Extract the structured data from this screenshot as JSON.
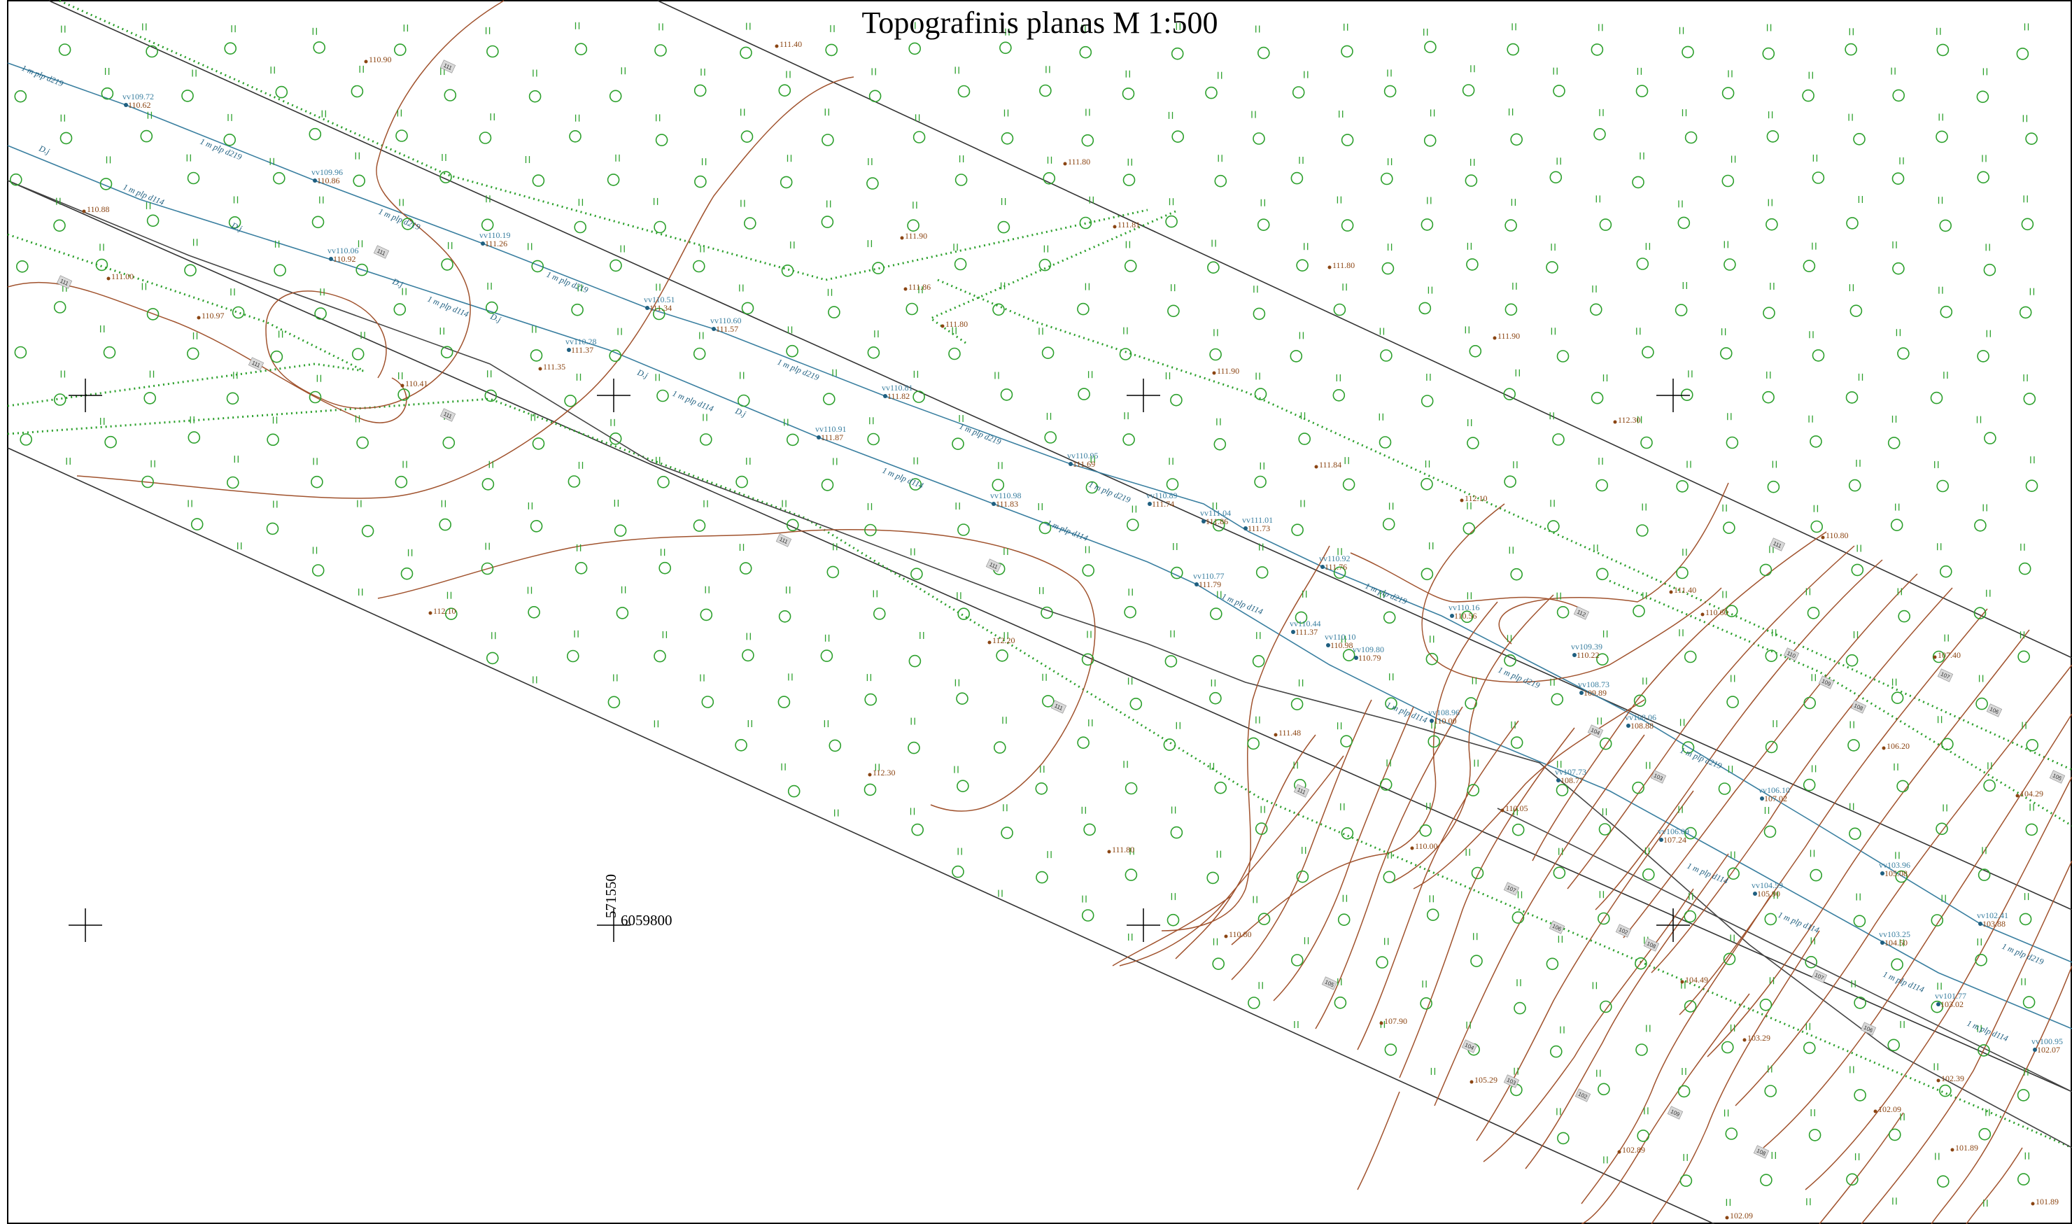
{
  "title": "Topografinis planas M 1:500",
  "grid_labels": {
    "easting": "571550",
    "northing": "6059800"
  },
  "colors": {
    "frame": "#000000",
    "road_edge": "#333333",
    "contour": "#a0522d",
    "elevation_text": "#8b4513",
    "water_pipe": "#3a7fa0",
    "gas_pipe": "#555555",
    "vegetation": "#2ca02c",
    "label_box": "#d9d9d9"
  },
  "legend_symbols": {
    "tree": "circle-symbol",
    "grass": "double-tick-symbol",
    "cross": "grid-cross-symbol"
  },
  "elevation_points": [
    "110.90",
    "111.40",
    "111.80",
    "110.88",
    "111.00",
    "110.97",
    "111.35",
    "110.41",
    "111.90",
    "111.81",
    "111.86",
    "111.80",
    "111.80",
    "111.90",
    "111.90",
    "112.30",
    "112.10",
    "111.84",
    "110.80",
    "111.40",
    "110.60",
    "112.10",
    "112.20",
    "112.30",
    "111.48",
    "111.80",
    "110.80",
    "110.00",
    "110.05",
    "107.40",
    "106.20",
    "104.29",
    "104.49",
    "107.90",
    "105.29",
    "103.29",
    "102.89",
    "102.09",
    "101.89",
    "101.89",
    "102.09",
    "102.39"
  ],
  "water_points": [
    {
      "v": "vv109.72",
      "h": "110.62"
    },
    {
      "v": "vv109.96",
      "h": "110.86"
    },
    {
      "v": "vv110.06",
      "h": "110.92"
    },
    {
      "v": "vv110.19",
      "h": "111.26"
    },
    {
      "v": "vv110.28",
      "h": "111.37"
    },
    {
      "v": "vv110.51",
      "h": "111.34"
    },
    {
      "v": "vv110.60",
      "h": "111.57"
    },
    {
      "v": "vv110.91",
      "h": "111.87"
    },
    {
      "v": "vv110.81",
      "h": "111.82"
    },
    {
      "v": "vv110.98",
      "h": "111.83"
    },
    {
      "v": "vv110.95",
      "h": "111.69"
    },
    {
      "v": "vv110.89",
      "h": "111.74"
    },
    {
      "v": "vv111.04",
      "h": "111.86"
    },
    {
      "v": "vv111.01",
      "h": "111.73"
    },
    {
      "v": "vv110.77",
      "h": "111.79"
    },
    {
      "v": "vv110.92",
      "h": "111.76"
    },
    {
      "v": "vv110.44",
      "h": "111.37"
    },
    {
      "v": "vv110.10",
      "h": "110.98"
    },
    {
      "v": "vv109.80",
      "h": "110.79"
    },
    {
      "v": "vv110.16",
      "h": "110.56"
    },
    {
      "v": "vv109.39",
      "h": "110.22"
    },
    {
      "v": "vv108.96",
      "h": "110.00"
    },
    {
      "v": "vv108.73",
      "h": "109.89"
    },
    {
      "v": "vv108.06",
      "h": "108.88"
    },
    {
      "v": "vv107.73",
      "h": "108.77"
    },
    {
      "v": "vv106.09",
      "h": "107.24"
    },
    {
      "v": "vv106.10",
      "h": "107.02"
    },
    {
      "v": "vv104.59",
      "h": "105.90"
    },
    {
      "v": "vv103.25",
      "h": "104.50"
    },
    {
      "v": "vv103.96",
      "h": "105.08"
    },
    {
      "v": "vv102.41",
      "h": "103.88"
    },
    {
      "v": "vv101.77",
      "h": "103.02"
    },
    {
      "v": "vv100.95",
      "h": "102.07"
    }
  ],
  "pipe_labels": {
    "water_219": "1 m plp d219",
    "water_114": "1 m plp d114",
    "dj": "D.j"
  },
  "contour_values": [
    "111",
    "111",
    "111",
    "111",
    "111",
    "111",
    "111",
    "111",
    "111",
    "112",
    "111",
    "110",
    "109",
    "108",
    "107",
    "106",
    "105",
    "104",
    "103",
    "102",
    "108",
    "107",
    "106",
    "105",
    "104",
    "103",
    "102",
    "109",
    "108",
    "107",
    "106"
  ]
}
